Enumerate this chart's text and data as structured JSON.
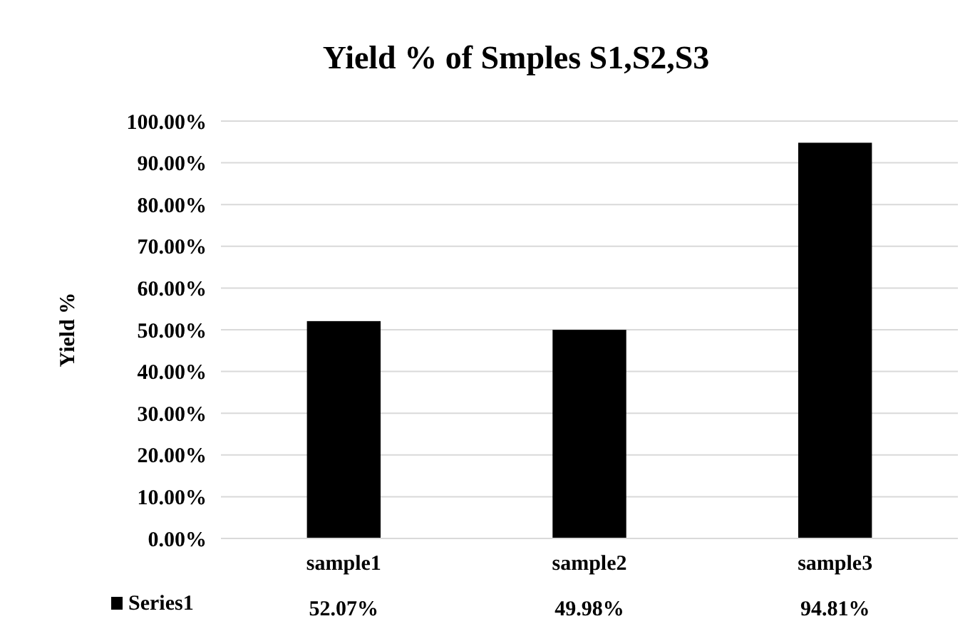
{
  "chart_data": {
    "type": "bar",
    "title": "Yield % of Smples S1,S2,S3",
    "ylabel": "Yield %",
    "categories": [
      "sample1",
      "sample2",
      "sample3"
    ],
    "series": [
      {
        "name": "Series1",
        "color": "#000000",
        "values": [
          52.07,
          49.98,
          94.81
        ],
        "value_labels": [
          "52.07%",
          "49.98%",
          "94.81%"
        ]
      }
    ],
    "ylim": [
      0,
      100
    ],
    "yticks": [
      {
        "value": 0,
        "label": "0.00%"
      },
      {
        "value": 10,
        "label": "10.00%"
      },
      {
        "value": 20,
        "label": "20.00%"
      },
      {
        "value": 30,
        "label": "30.00%"
      },
      {
        "value": 40,
        "label": "40.00%"
      },
      {
        "value": 50,
        "label": "50.00%"
      },
      {
        "value": 60,
        "label": "60.00%"
      },
      {
        "value": 70,
        "label": "70.00%"
      },
      {
        "value": 80,
        "label": "80.00%"
      },
      {
        "value": 90,
        "label": "90.00%"
      },
      {
        "value": 100,
        "label": "100.00%"
      }
    ],
    "grid": "y",
    "legend": "bottom"
  }
}
